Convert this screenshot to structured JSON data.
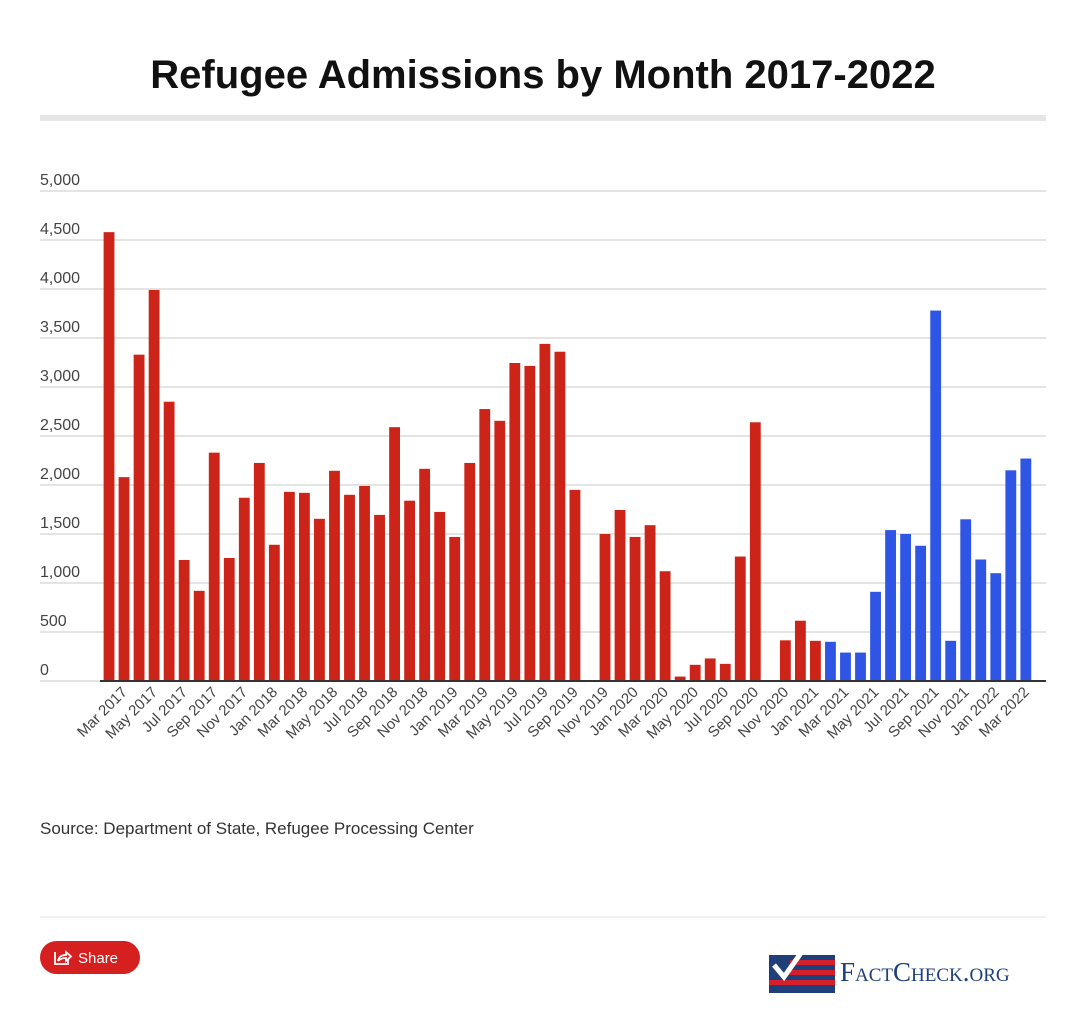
{
  "chart_data": {
    "type": "bar",
    "title": "Refugee Admissions by Month 2017-2022",
    "source": "Source: Department of State, Refugee Processing Center",
    "categories": [
      null,
      "Mar 2017",
      null,
      "May 2017",
      null,
      "Jul 2017",
      null,
      "Sep 2017",
      null,
      "Nov 2017",
      null,
      "Jan 2018",
      null,
      "Mar 2018",
      null,
      "May 2018",
      null,
      "Jul 2018",
      null,
      "Sep 2018",
      null,
      "Nov 2018",
      null,
      "Jan 2019",
      null,
      "Mar 2019",
      null,
      "May 2019",
      null,
      "Jul 2019",
      null,
      "Sep 2019",
      null,
      "Nov 2019",
      null,
      "Jan 2020",
      null,
      "Mar 2020",
      null,
      "May 2020",
      null,
      "Jul 2020",
      null,
      "Sep 2020",
      null,
      "Nov 2020",
      null,
      "Jan 2021",
      null,
      "Mar 2021",
      null,
      "May 2021",
      null,
      "Jul 2021",
      null,
      "Sep 2021",
      null,
      "Nov 2021",
      null,
      "Jan 2022",
      null,
      "Mar 2022"
    ],
    "series": [
      {
        "color": "#cc2418",
        "values": [
          4580,
          2080,
          3330,
          3990,
          2850,
          1235,
          920,
          2330,
          1255,
          1870,
          2225,
          1390,
          1930,
          1920,
          1655,
          2145,
          1900,
          1990,
          1695,
          2590,
          1840,
          2165,
          1725,
          1470,
          2225,
          2775,
          2655,
          3245,
          3215,
          3440,
          3360,
          1950,
          0,
          1500,
          1745,
          1470,
          1590,
          1120,
          45,
          165,
          230,
          175,
          1270,
          2640,
          0,
          415,
          615,
          410,
          null,
          null,
          null,
          null,
          null,
          null,
          null,
          null,
          null,
          null,
          null,
          null,
          null,
          null
        ]
      },
      {
        "color": "#2f55e4",
        "values": [
          null,
          null,
          null,
          null,
          null,
          null,
          null,
          null,
          null,
          null,
          null,
          null,
          null,
          null,
          null,
          null,
          null,
          null,
          null,
          null,
          null,
          null,
          null,
          null,
          null,
          null,
          null,
          null,
          null,
          null,
          null,
          null,
          null,
          null,
          null,
          null,
          null,
          null,
          null,
          null,
          null,
          null,
          null,
          null,
          null,
          null,
          null,
          null,
          400,
          290,
          290,
          910,
          1540,
          1500,
          1380,
          3780,
          410,
          1650,
          1240,
          1100,
          2150,
          2270
        ]
      }
    ],
    "ylim": [
      0,
      5000
    ],
    "yticks": [
      0,
      500,
      {
        "value": 1000,
        "label": "1,000"
      },
      {
        "value": 1500,
        "label": "1,500"
      },
      {
        "value": 2000,
        "label": "2,000"
      },
      {
        "value": 2500,
        "label": "2,500"
      },
      {
        "value": 3000,
        "label": "3,000"
      },
      {
        "value": 3500,
        "label": "3,500"
      },
      {
        "value": 4000,
        "label": "4,000"
      },
      {
        "value": 4500,
        "label": "4,500"
      },
      {
        "value": 5000,
        "label": "5,000"
      }
    ],
    "grid": true
  },
  "share_button": "Share",
  "logo": "FactCheck.org"
}
